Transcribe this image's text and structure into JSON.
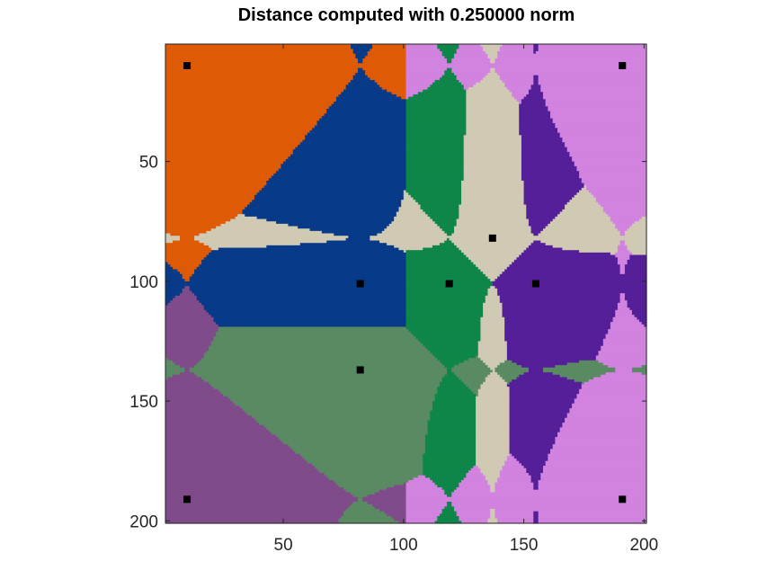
{
  "chart_data": {
    "type": "heatmap",
    "title": "Distance computed with 0.250000 norm",
    "xlabel": "",
    "ylabel": "",
    "xlim": [
      1,
      201
    ],
    "ylim": [
      1,
      201
    ],
    "y_reversed": true,
    "grid": false,
    "xticks": [
      50,
      100,
      150,
      200
    ],
    "yticks": [
      50,
      100,
      150,
      200
    ],
    "xtick_labels": [
      "50",
      "100",
      "150",
      "200"
    ],
    "ytick_labels": [
      "50",
      "100",
      "150",
      "200"
    ],
    "norm_p": 0.25,
    "palette": [
      "#de5a04",
      "#073a88",
      "#0e8649",
      "#d0c9b3",
      "#541f99",
      "#d183df",
      "#5a8a62",
      "#7f4b8a"
    ],
    "points": [
      {
        "x": 10,
        "y": 10,
        "color": "#de5a04"
      },
      {
        "x": 191,
        "y": 10,
        "color": "#d183df"
      },
      {
        "x": 82,
        "y": 101,
        "color": "#073a88"
      },
      {
        "x": 119,
        "y": 101,
        "color": "#0e8649"
      },
      {
        "x": 137,
        "y": 82,
        "color": "#d0c9b3"
      },
      {
        "x": 155,
        "y": 101,
        "color": "#541f99"
      },
      {
        "x": 82,
        "y": 137,
        "color": "#5a8a62"
      },
      {
        "x": 10,
        "y": 191,
        "color": "#7f4b8a"
      },
      {
        "x": 191,
        "y": 191,
        "color": "#d183df"
      }
    ],
    "marker_color": "#000000"
  }
}
